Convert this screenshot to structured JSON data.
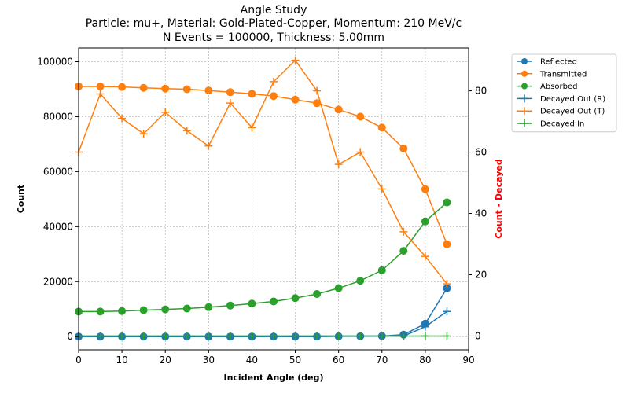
{
  "chart_data": {
    "type": "line",
    "title_lines": [
      "Angle Study",
      "Particle: mu+, Material: Gold-Plated-Copper, Momentum: 210 MeV/c",
      "N Events = 100000, Thickness: 5.00mm"
    ],
    "xlabel": "Incident Angle (deg)",
    "ylabel_left": "Count",
    "ylabel_right": "Count - Decayed",
    "ylabel_right_color": "#ff0000",
    "xlim": [
      0,
      90
    ],
    "ylim_left": [
      -4800,
      105000
    ],
    "ylim_right": [
      -4.5,
      94
    ],
    "xticks": [
      0,
      10,
      20,
      30,
      40,
      50,
      60,
      70,
      80,
      90
    ],
    "yticks_left": [
      0,
      20000,
      40000,
      60000,
      80000,
      100000
    ],
    "yticks_right": [
      0,
      20,
      40,
      60,
      80
    ],
    "grid": true,
    "legend_position": "outside-right",
    "x": [
      0,
      5,
      10,
      15,
      20,
      25,
      30,
      35,
      40,
      45,
      50,
      55,
      60,
      65,
      70,
      75,
      80,
      85
    ],
    "series": [
      {
        "name": "Reflected",
        "axis": "left",
        "marker": "circle",
        "color": "#1f77b4",
        "values": [
          0,
          0,
          0,
          0,
          0,
          0,
          0,
          0,
          0,
          0,
          0,
          0,
          100,
          150,
          200,
          700,
          4700,
          17600
        ]
      },
      {
        "name": "Transmitted",
        "axis": "left",
        "marker": "circle",
        "color": "#ff7f0e",
        "values": [
          91000,
          91000,
          90800,
          90500,
          90200,
          90000,
          89500,
          88900,
          88300,
          87500,
          86200,
          84900,
          82600,
          80000,
          76000,
          68400,
          53600,
          33600
        ]
      },
      {
        "name": "Absorbed",
        "axis": "left",
        "marker": "circle",
        "color": "#2ca02c",
        "values": [
          9100,
          9100,
          9300,
          9600,
          9900,
          10200,
          10700,
          11300,
          12000,
          12800,
          14000,
          15500,
          17600,
          20300,
          24100,
          31200,
          41900,
          48800
        ]
      },
      {
        "name": "Decayed Out (R)",
        "axis": "right",
        "marker": "plus",
        "color": "#1f77b4",
        "values": [
          0,
          0,
          0,
          0,
          0,
          0,
          0,
          0,
          0,
          0,
          0,
          0,
          0,
          0,
          0,
          0,
          3,
          8
        ]
      },
      {
        "name": "Decayed Out (T)",
        "axis": "right",
        "marker": "plus",
        "color": "#ff7f0e",
        "values": [
          60,
          79,
          71,
          66,
          73,
          67,
          62,
          76,
          68,
          83,
          90,
          80,
          56,
          60,
          48,
          34,
          26,
          17
        ]
      },
      {
        "name": "Decayed In",
        "axis": "right",
        "marker": "plus",
        "color": "#2ca02c",
        "values": [
          0,
          0,
          0,
          0,
          0,
          0,
          0,
          0,
          0,
          0,
          0,
          0,
          0,
          0,
          0,
          0,
          0,
          0
        ]
      }
    ]
  }
}
